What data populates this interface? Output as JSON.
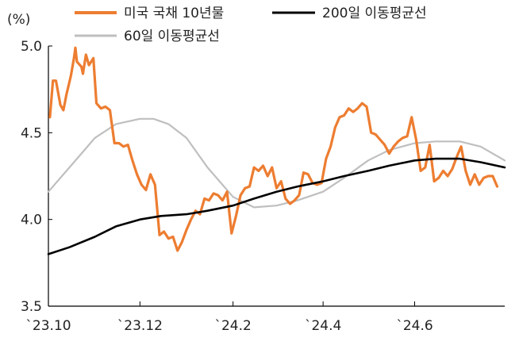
{
  "chart_data": {
    "type": "line",
    "unit_label": "(%)",
    "ylim": [
      3.5,
      5.0
    ],
    "yticks": [
      "5.0",
      "4.5",
      "4.0",
      "3.5"
    ],
    "ytick_values": [
      5.0,
      4.5,
      4.0,
      3.5
    ],
    "xlim": [
      "2023-10-01",
      "2024-07-31"
    ],
    "xtick_labels": [
      "`23.10",
      "`23.12",
      "`24.2",
      "`24.4",
      "`24.6"
    ],
    "xtick_dates": [
      "2023-10-01",
      "2023-12-01",
      "2024-02-01",
      "2024-04-01",
      "2024-06-01"
    ],
    "grid": false,
    "legend_position": "top",
    "series": [
      {
        "name": "미국 국채 10년물",
        "color": "#ED7D31",
        "x": [
          "2023-10-02",
          "2023-10-04",
          "2023-10-06",
          "2023-10-09",
          "2023-10-11",
          "2023-10-13",
          "2023-10-16",
          "2023-10-18",
          "2023-10-19",
          "2023-10-20",
          "2023-10-23",
          "2023-10-24",
          "2023-10-26",
          "2023-10-28",
          "2023-10-31",
          "2023-11-02",
          "2023-11-05",
          "2023-11-08",
          "2023-11-11",
          "2023-11-14",
          "2023-11-17",
          "2023-11-20",
          "2023-11-23",
          "2023-11-26",
          "2023-11-29",
          "2023-12-02",
          "2023-12-05",
          "2023-12-08",
          "2023-12-11",
          "2023-12-14",
          "2023-12-17",
          "2023-12-20",
          "2023-12-23",
          "2023-12-26",
          "2023-12-29",
          "2024-01-01",
          "2024-01-04",
          "2024-01-07",
          "2024-01-10",
          "2024-01-13",
          "2024-01-16",
          "2024-01-19",
          "2024-01-22",
          "2024-01-25",
          "2024-01-28",
          "2024-01-31",
          "2024-02-03",
          "2024-02-06",
          "2024-02-09",
          "2024-02-12",
          "2024-02-15",
          "2024-02-18",
          "2024-02-21",
          "2024-02-24",
          "2024-02-27",
          "2024-03-01",
          "2024-03-04",
          "2024-03-07",
          "2024-03-10",
          "2024-03-13",
          "2024-03-16",
          "2024-03-19",
          "2024-03-22",
          "2024-03-25",
          "2024-03-28",
          "2024-03-31",
          "2024-04-03",
          "2024-04-06",
          "2024-04-09",
          "2024-04-12",
          "2024-04-15",
          "2024-04-18",
          "2024-04-21",
          "2024-04-24",
          "2024-04-27",
          "2024-04-30",
          "2024-05-03",
          "2024-05-06",
          "2024-05-09",
          "2024-05-12",
          "2024-05-15",
          "2024-05-18",
          "2024-05-21",
          "2024-05-24",
          "2024-05-27",
          "2024-05-30",
          "2024-06-02",
          "2024-06-05",
          "2024-06-08",
          "2024-06-11",
          "2024-06-14",
          "2024-06-17",
          "2024-06-20",
          "2024-06-23",
          "2024-06-26",
          "2024-06-29",
          "2024-07-02",
          "2024-07-05",
          "2024-07-08",
          "2024-07-11",
          "2024-07-14",
          "2024-07-17",
          "2024-07-20",
          "2024-07-23",
          "2024-07-26"
        ],
        "y": [
          4.59,
          4.8,
          4.8,
          4.66,
          4.63,
          4.72,
          4.83,
          4.93,
          4.99,
          4.91,
          4.88,
          4.84,
          4.95,
          4.89,
          4.93,
          4.67,
          4.64,
          4.65,
          4.63,
          4.44,
          4.44,
          4.42,
          4.43,
          4.34,
          4.26,
          4.2,
          4.17,
          4.26,
          4.2,
          3.91,
          3.93,
          3.89,
          3.9,
          3.82,
          3.87,
          3.94,
          4.0,
          4.05,
          4.03,
          4.12,
          4.11,
          4.15,
          4.14,
          4.11,
          4.16,
          3.92,
          4.02,
          4.14,
          4.18,
          4.19,
          4.3,
          4.28,
          4.31,
          4.25,
          4.3,
          4.18,
          4.22,
          4.12,
          4.09,
          4.11,
          4.14,
          4.27,
          4.26,
          4.21,
          4.2,
          4.21,
          4.35,
          4.42,
          4.53,
          4.59,
          4.6,
          4.64,
          4.62,
          4.64,
          4.67,
          4.65,
          4.5,
          4.49,
          4.46,
          4.43,
          4.38,
          4.42,
          4.45,
          4.47,
          4.48,
          4.59,
          4.46,
          4.28,
          4.3,
          4.43,
          4.22,
          4.24,
          4.28,
          4.25,
          4.29,
          4.36,
          4.42,
          4.28,
          4.2,
          4.26,
          4.2,
          4.24,
          4.25,
          4.25,
          4.19
        ]
      },
      {
        "name": "200일 이동평균선",
        "color": "#000000",
        "x": [
          "2023-10-01",
          "2023-10-15",
          "2023-11-01",
          "2023-11-15",
          "2023-12-01",
          "2023-12-15",
          "2024-01-01",
          "2024-01-15",
          "2024-02-01",
          "2024-02-15",
          "2024-03-01",
          "2024-03-15",
          "2024-04-01",
          "2024-04-15",
          "2024-05-01",
          "2024-05-15",
          "2024-06-01",
          "2024-06-15",
          "2024-07-01",
          "2024-07-15",
          "2024-07-31"
        ],
        "y": [
          3.8,
          3.84,
          3.9,
          3.96,
          4.0,
          4.02,
          4.03,
          4.05,
          4.08,
          4.12,
          4.16,
          4.19,
          4.22,
          4.25,
          4.28,
          4.31,
          4.34,
          4.35,
          4.35,
          4.33,
          4.3
        ]
      },
      {
        "name": "60일 이동평균선",
        "color": "#BFBFBF",
        "x": [
          "2023-10-01",
          "2023-10-15",
          "2023-11-01",
          "2023-11-15",
          "2023-12-01",
          "2023-12-10",
          "2023-12-20",
          "2024-01-01",
          "2024-01-15",
          "2024-02-01",
          "2024-02-15",
          "2024-03-01",
          "2024-03-15",
          "2024-04-01",
          "2024-04-15",
          "2024-05-01",
          "2024-05-15",
          "2024-06-01",
          "2024-06-15",
          "2024-07-01",
          "2024-07-15",
          "2024-07-31"
        ],
        "y": [
          4.16,
          4.3,
          4.47,
          4.55,
          4.58,
          4.58,
          4.55,
          4.47,
          4.3,
          4.13,
          4.07,
          4.08,
          4.11,
          4.16,
          4.24,
          4.34,
          4.4,
          4.44,
          4.45,
          4.45,
          4.42,
          4.34
        ]
      }
    ]
  }
}
